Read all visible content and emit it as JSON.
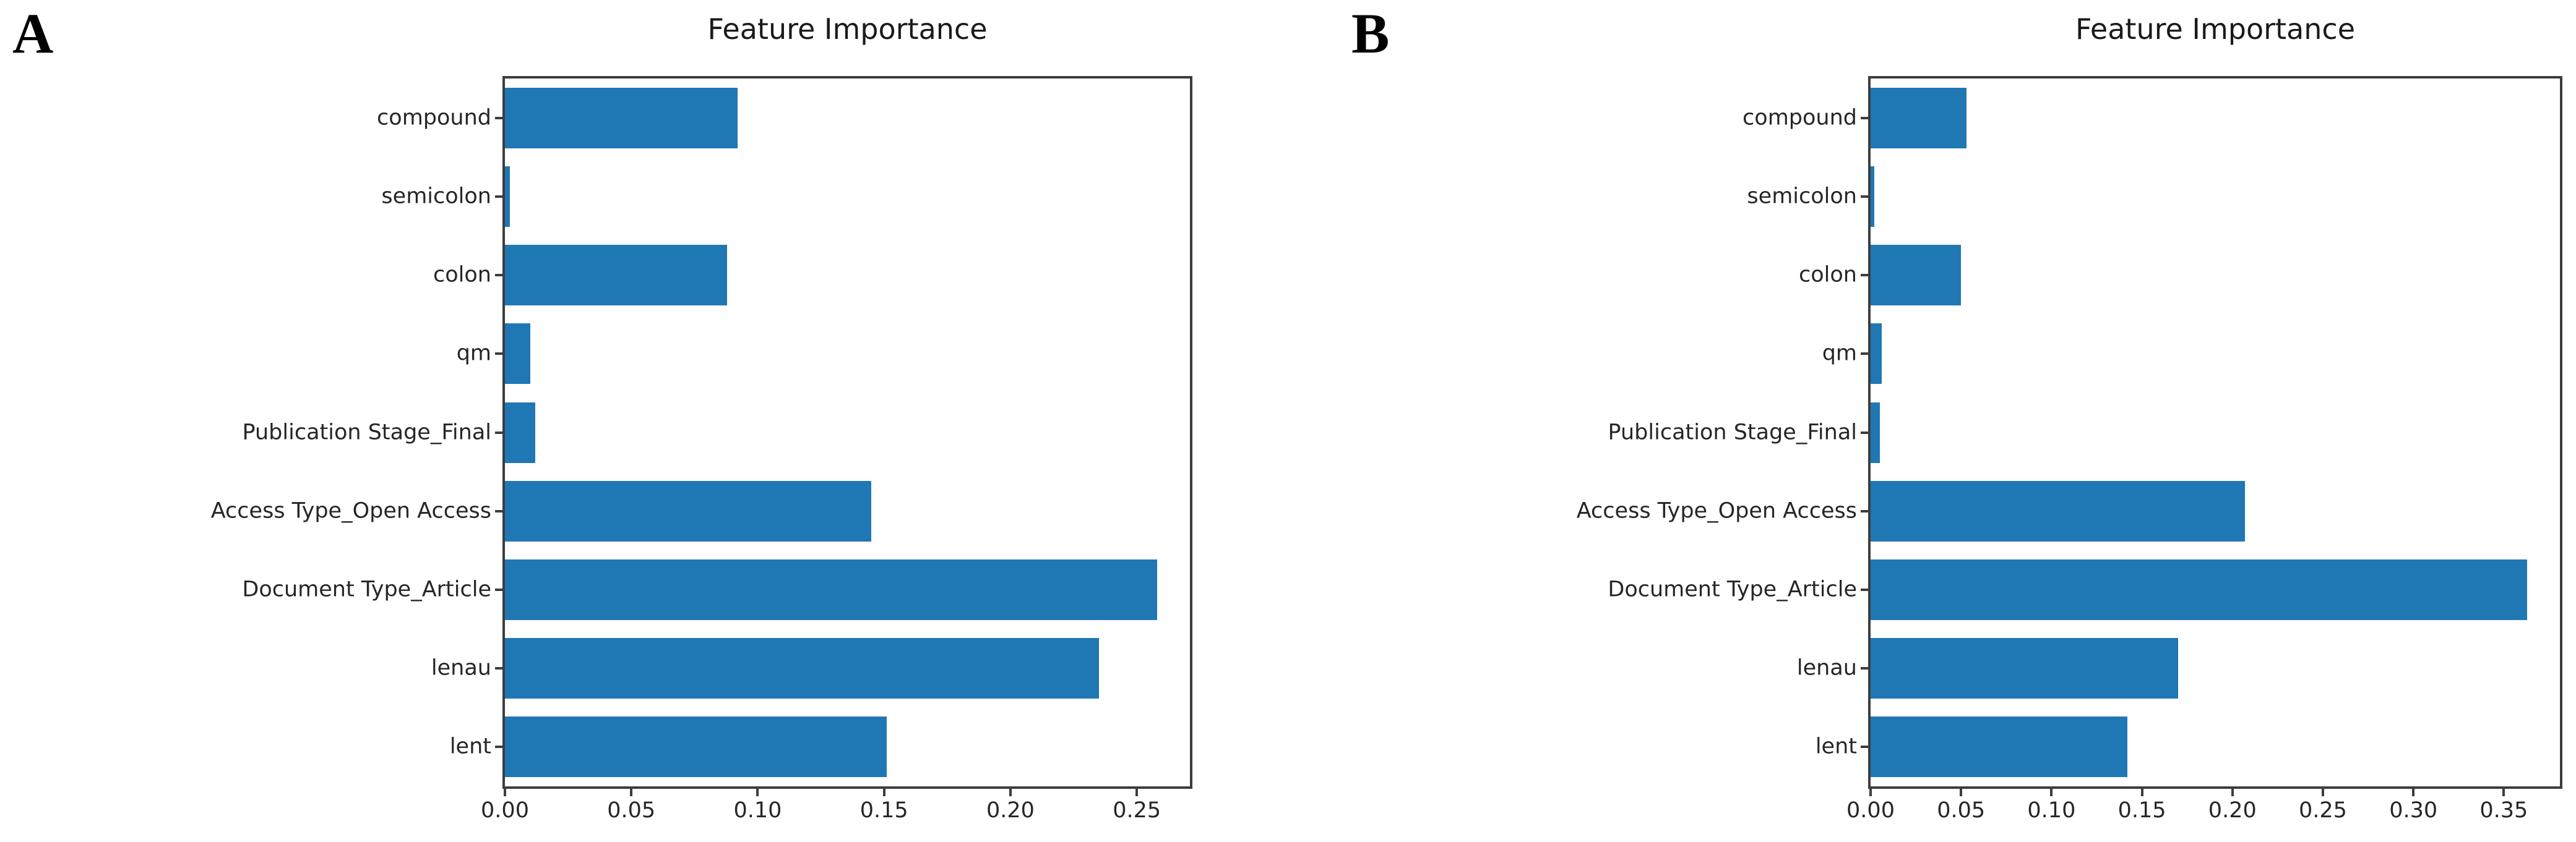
{
  "figure_background": "#ffffff",
  "bar_color": "#1f77b4",
  "axis_color": "#3d3d3d",
  "text_color": "#262626",
  "chart_data": [
    {
      "panel_label": "A",
      "type": "bar",
      "orientation": "horizontal",
      "title": "Feature Importance",
      "xlabel": "",
      "ylabel": "",
      "grid": false,
      "legend": null,
      "categories": [
        "compound",
        "semicolon",
        "colon",
        "qm",
        "Publication Stage_Final",
        "Access Type_Open Access",
        "Document Type_Article",
        "lenau",
        "lent"
      ],
      "values": [
        0.092,
        0.002,
        0.088,
        0.01,
        0.012,
        0.145,
        0.258,
        0.235,
        0.151
      ],
      "xlim": [
        0,
        0.271
      ],
      "xticks": [
        "0.00",
        "0.05",
        "0.10",
        "0.15",
        "0.20",
        "0.25"
      ],
      "xtick_values": [
        0,
        0.05,
        0.1,
        0.15,
        0.2,
        0.25
      ],
      "bar_color": "#1f77b4"
    },
    {
      "panel_label": "B",
      "type": "bar",
      "orientation": "horizontal",
      "title": "Feature Importance",
      "xlabel": "",
      "ylabel": "",
      "grid": false,
      "legend": null,
      "categories": [
        "compound",
        "semicolon",
        "colon",
        "qm",
        "Publication Stage_Final",
        "Access Type_Open Access",
        "Document Type_Article",
        "lenau",
        "lent"
      ],
      "values": [
        0.053,
        0.002,
        0.05,
        0.006,
        0.005,
        0.207,
        0.363,
        0.17,
        0.142
      ],
      "xlim": [
        0,
        0.381
      ],
      "xticks": [
        "0.00",
        "0.05",
        "0.10",
        "0.15",
        "0.20",
        "0.25",
        "0.30",
        "0.35"
      ],
      "xtick_values": [
        0,
        0.05,
        0.1,
        0.15,
        0.2,
        0.25,
        0.3,
        0.35
      ],
      "bar_color": "#1f77b4"
    }
  ]
}
